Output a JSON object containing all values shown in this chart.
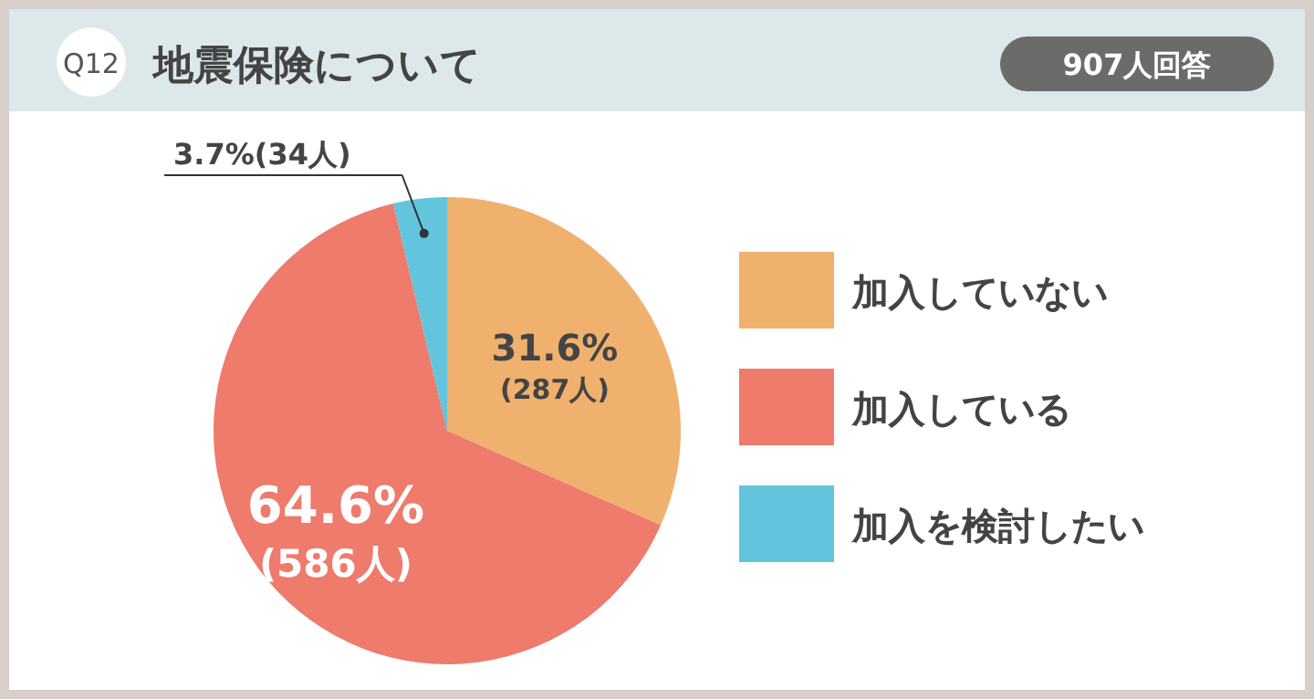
{
  "chart_data": {
    "type": "pie",
    "title": "地震保険について",
    "subtitle": "907人回答",
    "annotations": [
      "Q12"
    ],
    "categories": [
      "加入していない",
      "加入している",
      "加入を検討したい"
    ],
    "values": [
      31.6,
      64.6,
      3.7
    ],
    "colors": [
      "#f0b06e",
      "#ee7b6c",
      "#62c4dd"
    ],
    "value_labels": [
      "31.6%(287人)",
      "64.6%(586人)",
      "3.7%(34人)"
    ],
    "legend": "right"
  }
}
